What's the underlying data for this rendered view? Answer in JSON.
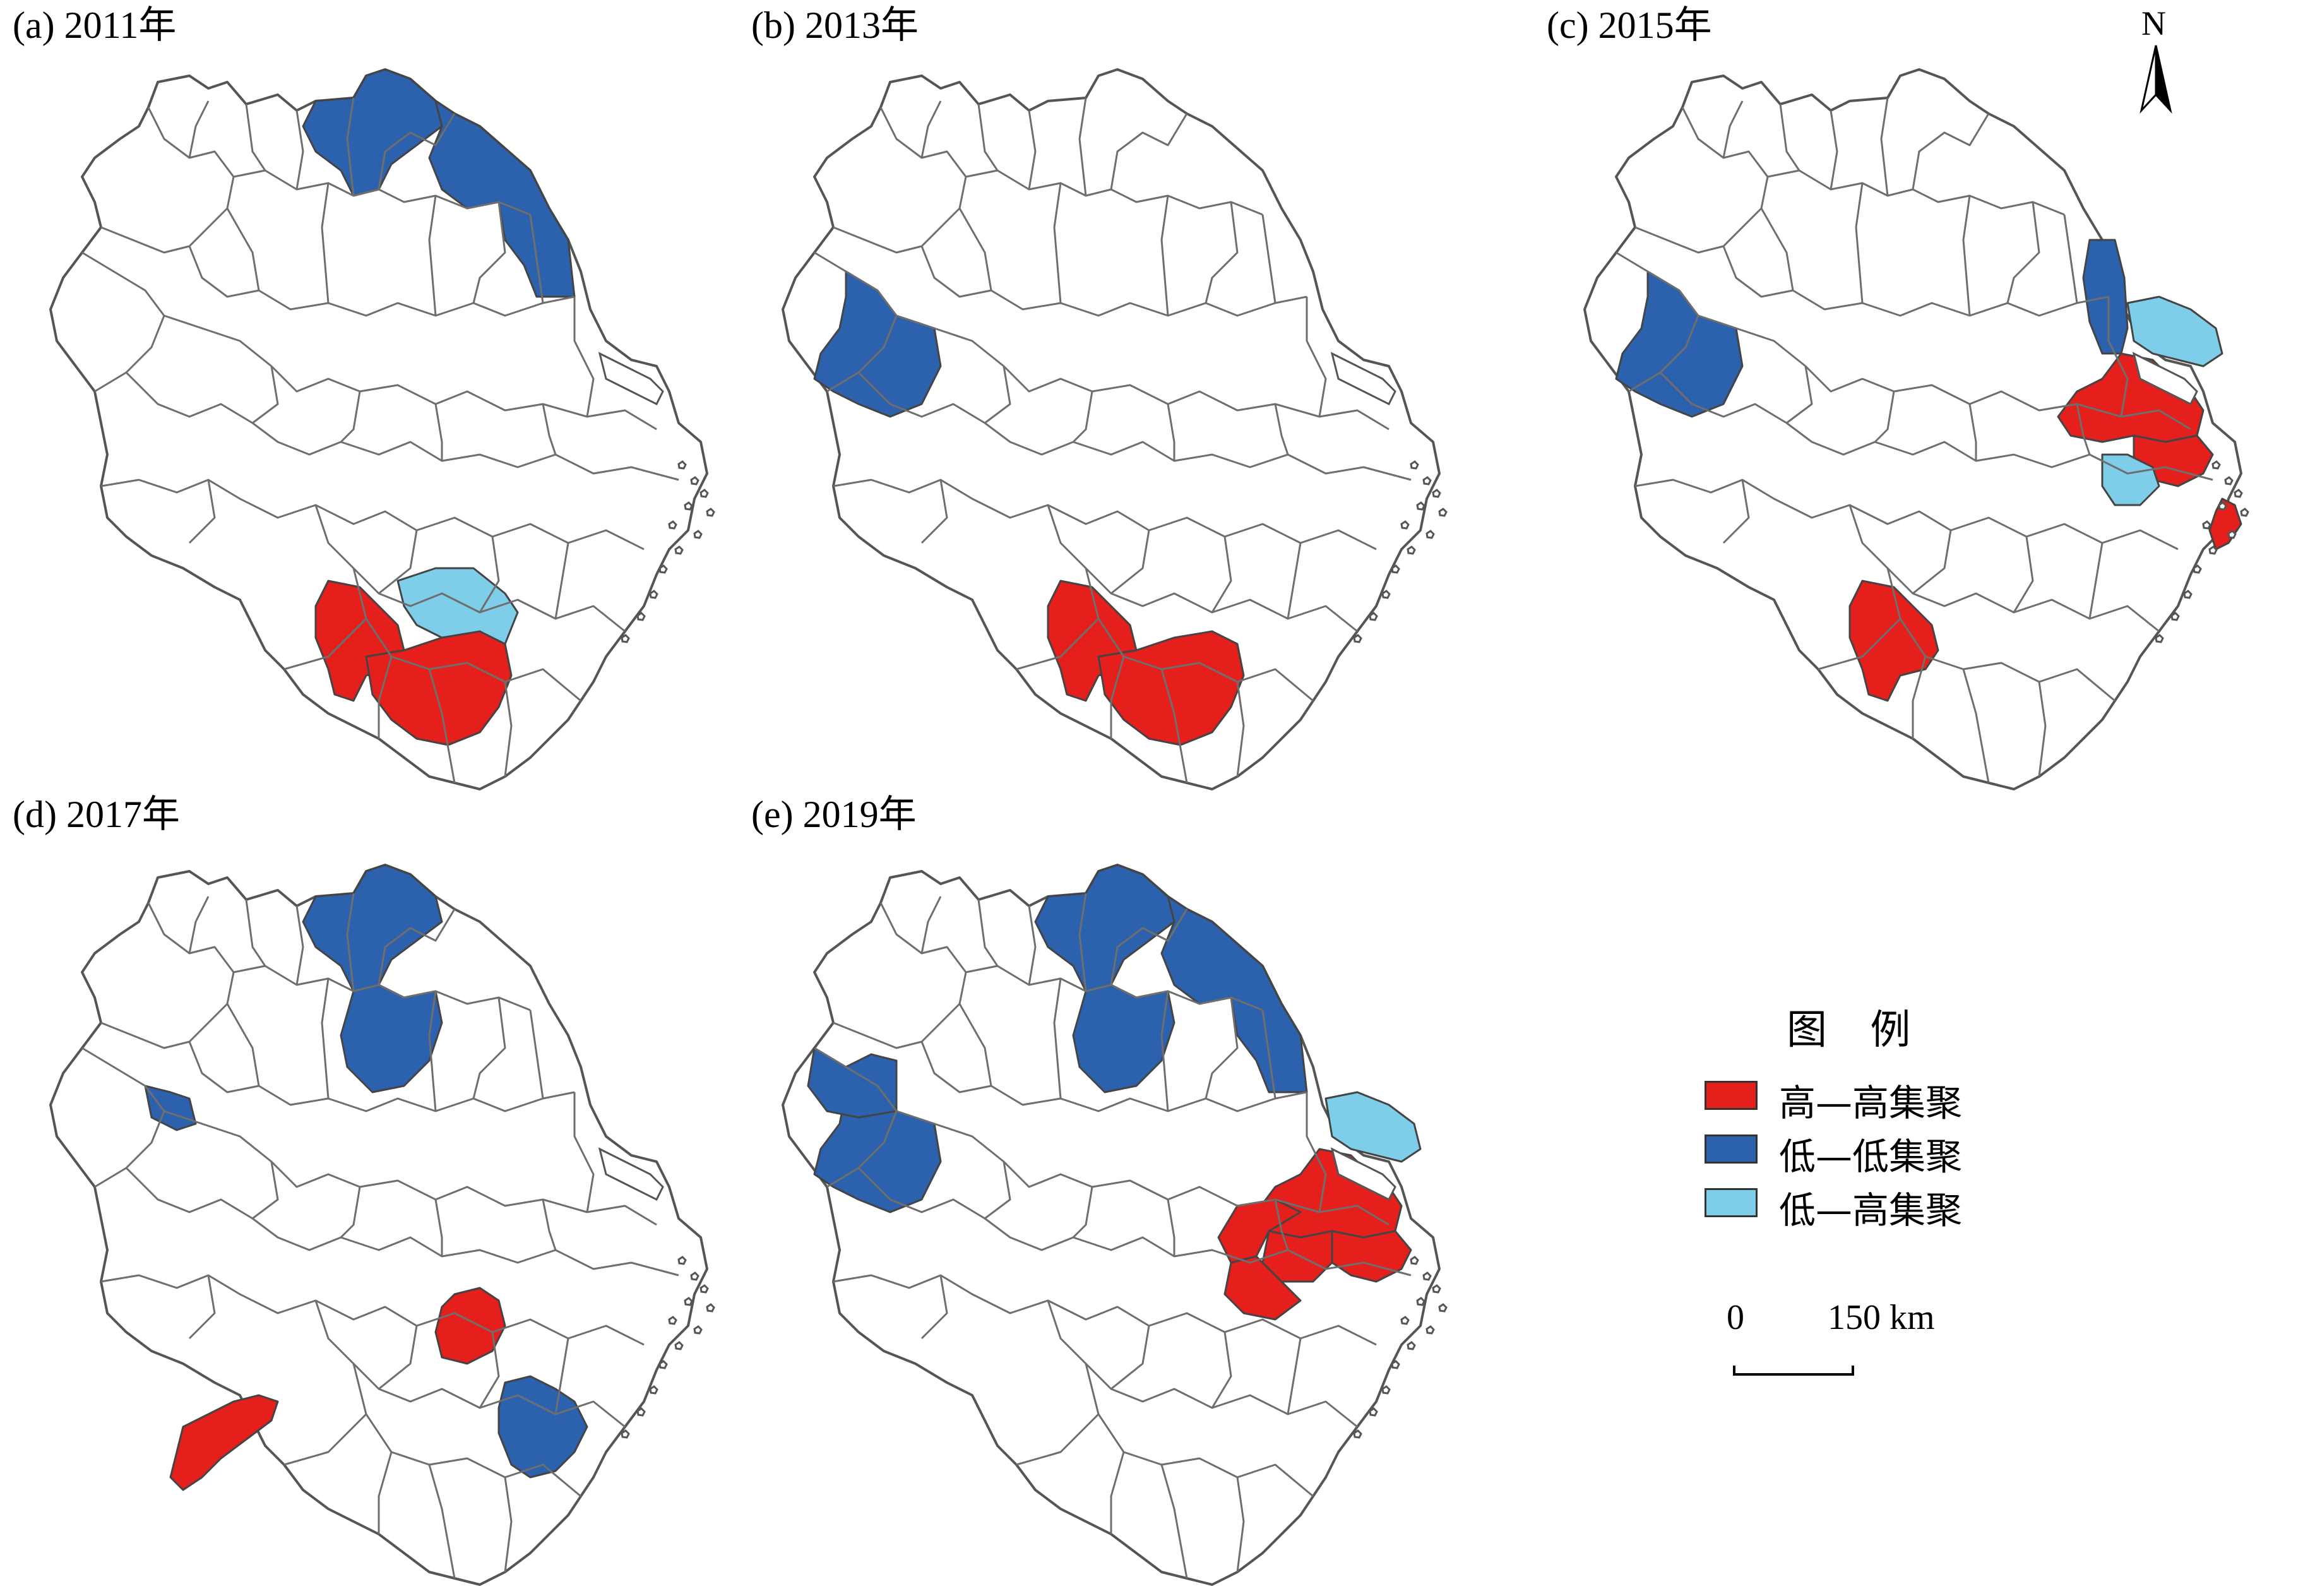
{
  "panels": [
    {
      "label": "(a) 2011年",
      "hh": [
        "s1",
        "s2"
      ],
      "ll": [
        "n1",
        "n2"
      ],
      "lh": [
        "s3"
      ]
    },
    {
      "label": "(b) 2013年",
      "hh": [
        "s1",
        "s2"
      ],
      "ll": [
        "w1"
      ],
      "lh": []
    },
    {
      "label": "(c) 2015年",
      "hh": [
        "sh1",
        "sh2",
        "e1",
        "s1"
      ],
      "ll": [
        "w1",
        "c1"
      ],
      "lh": [
        "sh3",
        "sh4"
      ]
    },
    {
      "label": "(d) 2017年",
      "hh": [
        "c2",
        "sw1"
      ],
      "ll": [
        "n1",
        "n3",
        "w2",
        "se1"
      ],
      "lh": []
    },
    {
      "label": "(e) 2019年",
      "hh": [
        "sh1",
        "sh2",
        "sh5",
        "sh6",
        "sh7"
      ],
      "ll": [
        "n1",
        "n2",
        "n3",
        "w1",
        "w3"
      ],
      "lh": [
        "sh3"
      ]
    }
  ],
  "legend": {
    "title": "图 例",
    "items": [
      {
        "label": "高—高集聚",
        "color": "#e41f1c"
      },
      {
        "label": "低—低集聚",
        "color": "#2c62ad"
      },
      {
        "label": "低—高集聚",
        "color": "#7ecde9"
      }
    ]
  },
  "scale": {
    "start": "0",
    "end": "150 km"
  },
  "north": {
    "label": "N"
  },
  "colors": {
    "hh": "#e41f1c",
    "ll": "#2c62ad",
    "lh": "#7ecde9"
  }
}
